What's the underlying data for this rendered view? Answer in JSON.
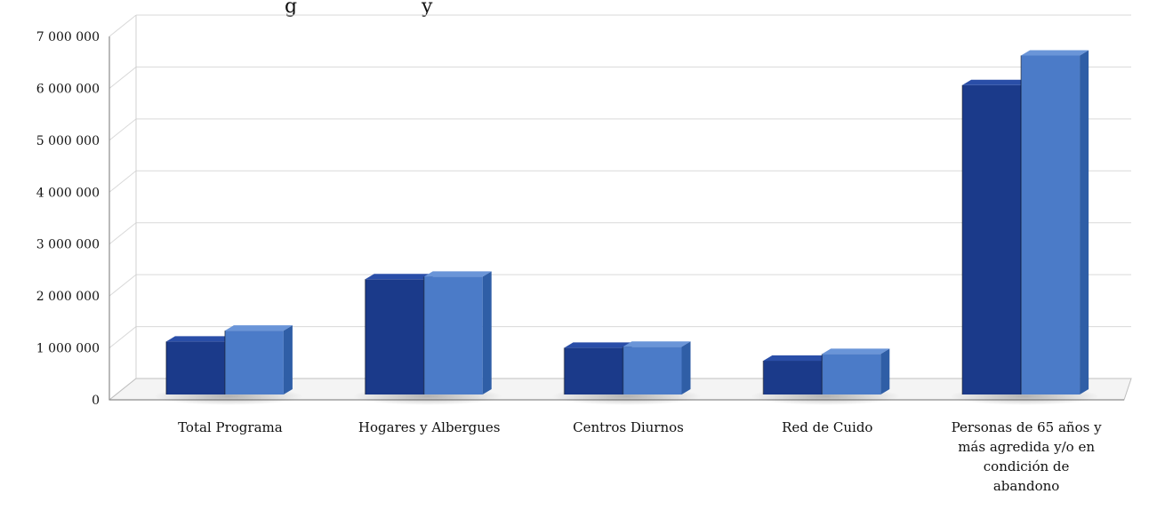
{
  "chart_data": {
    "type": "bar",
    "title": "g                    y",
    "categories": [
      [
        "Total Programa"
      ],
      [
        "Hogares y Albergues"
      ],
      [
        "Centros Diurnos"
      ],
      [
        "Red de Cuido"
      ],
      [
        "Personas de 65 años y",
        "más agredida y/o en",
        "condición de",
        "abandono"
      ]
    ],
    "series": [
      {
        "values": [
          1020000,
          2220000,
          900000,
          650000,
          5960000
        ]
      },
      {
        "values": [
          1230000,
          2270000,
          920000,
          780000,
          6530000
        ]
      }
    ],
    "ylim": [
      0,
      7000000
    ],
    "yticks": [
      "0",
      "1 000 000",
      "2 000 000",
      "3 000 000",
      "4 000 000",
      "5 000 000",
      "6 000 000",
      "7 000 000"
    ],
    "grid": true,
    "legend": "none",
    "colors": {
      "series1_front": "#1b3a8a",
      "series1_side": "#0e2360",
      "series1_top": "#2a4ea8",
      "series2_front": "#4b7bc8",
      "series2_side": "#2f5ea6",
      "series2_top": "#6a95d8",
      "grid": "#d9d9d9",
      "axis": "#8c8c8c"
    }
  }
}
